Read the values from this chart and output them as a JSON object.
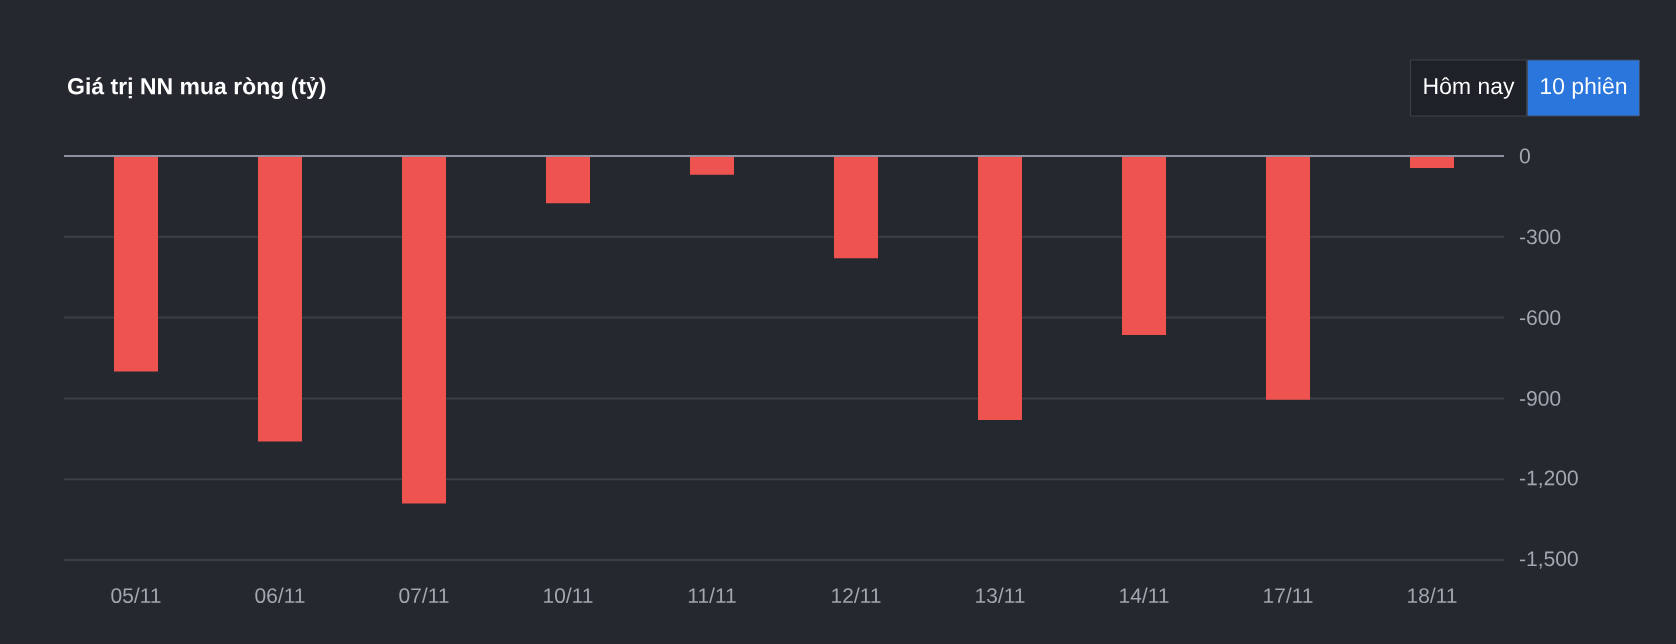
{
  "chart_data": {
    "type": "bar",
    "title": "Giá trị NN mua ròng (tỷ)",
    "categories": [
      "05/11",
      "06/11",
      "07/11",
      "10/11",
      "11/11",
      "12/11",
      "13/11",
      "14/11",
      "17/11",
      "18/11"
    ],
    "values": [
      -800,
      -1060,
      -1290,
      -175,
      -70,
      -380,
      -980,
      -665,
      -905,
      -45
    ],
    "color": "#ef5350",
    "ylim": [
      -1500,
      0
    ],
    "yticks": [
      0,
      -300,
      -600,
      -900,
      {
        "value": -1200,
        "label": "-1,200"
      },
      {
        "value": -1500,
        "label": "-1,500"
      }
    ],
    "grid": "y",
    "annotations": [
      "Hôm nay",
      "10 phiên"
    ]
  }
}
